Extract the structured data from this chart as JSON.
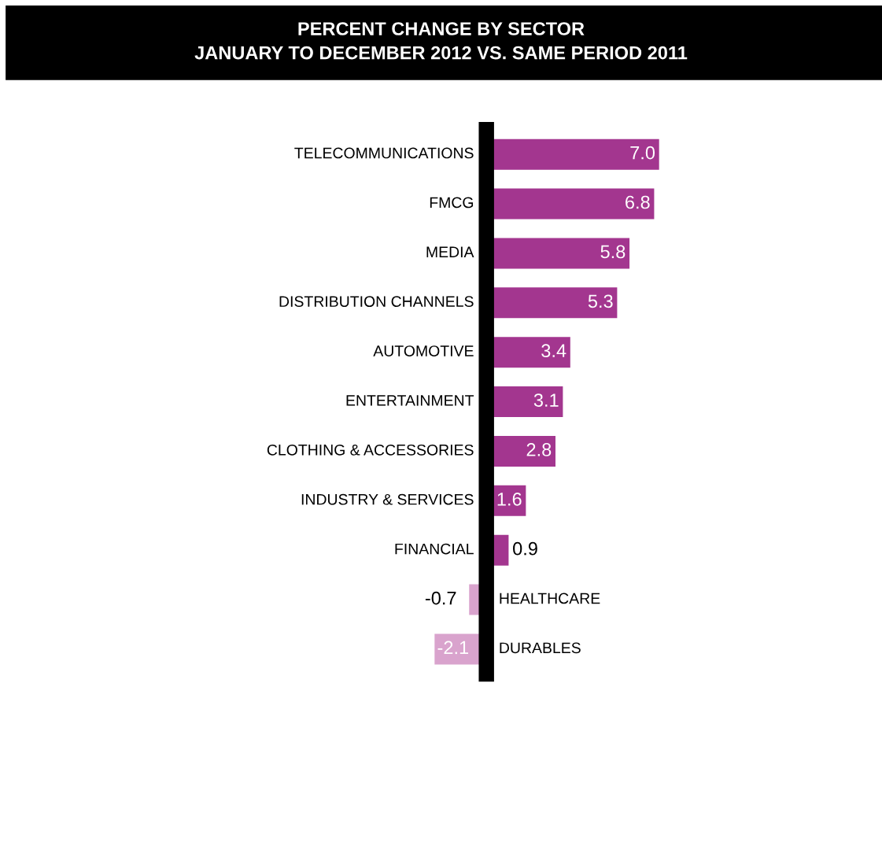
{
  "chart_data": {
    "type": "bar",
    "orientation": "horizontal",
    "title": "PERCENT CHANGE BY SECTOR\nJANUARY TO DECEMBER 2012 VS. SAME PERIOD 2011",
    "categories": [
      "TELECOMMUNICATIONS",
      "FMCG",
      "MEDIA",
      "DISTRIBUTION CHANNELS",
      "AUTOMOTIVE",
      "ENTERTAINMENT",
      "CLOTHING & ACCESSORIES",
      "INDUSTRY & SERVICES",
      "FINANCIAL",
      "HEALTHCARE",
      "DURABLES"
    ],
    "values": [
      7.0,
      6.8,
      5.8,
      5.3,
      3.4,
      3.1,
      2.8,
      1.6,
      0.9,
      -0.7,
      -2.1
    ],
    "value_labels": [
      "7.0",
      "6.8",
      "5.8",
      "5.3",
      "3.4",
      "3.1",
      "2.8",
      "1.6",
      "0.9",
      "-0.7",
      "-2.1"
    ],
    "colors": [
      "#a3368f",
      "#a3368f",
      "#a3368f",
      "#a3368f",
      "#a3368f",
      "#a3368f",
      "#a3368f",
      "#a3368f",
      "#a3368f",
      "#d9a3cd",
      "#d9a3cd"
    ],
    "legend": false
  }
}
